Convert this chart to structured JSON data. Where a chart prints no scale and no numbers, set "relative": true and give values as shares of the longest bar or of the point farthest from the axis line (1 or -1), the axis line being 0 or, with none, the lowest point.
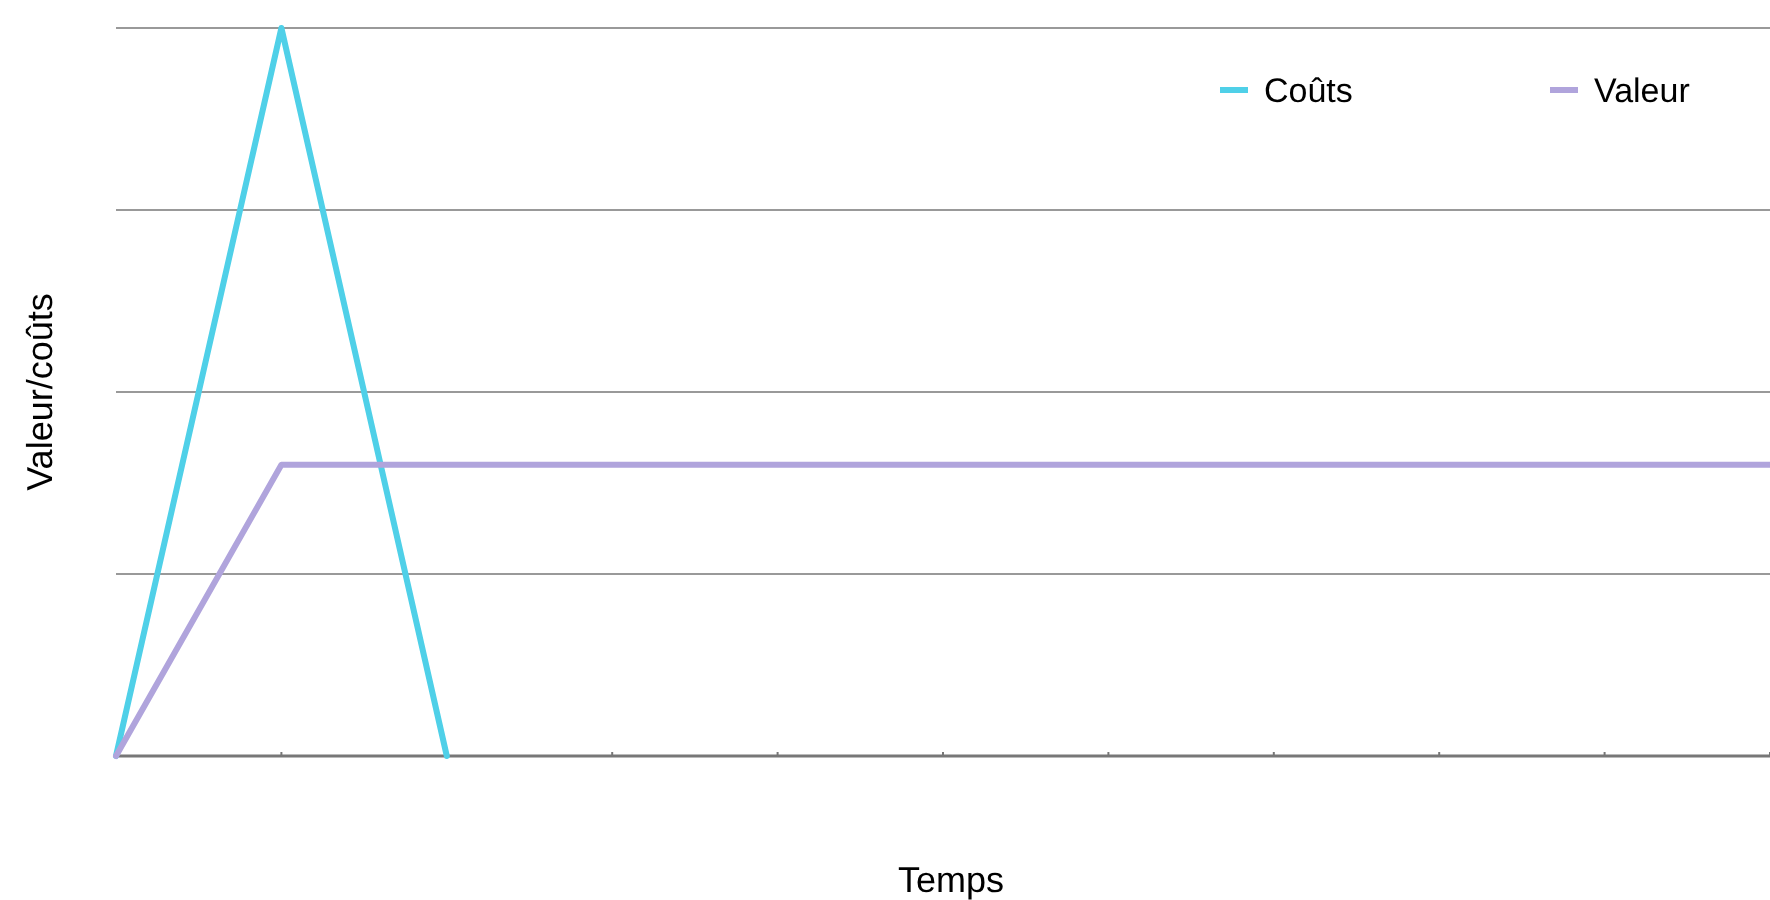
{
  "chart_data": {
    "type": "line",
    "xlabel": "Temps",
    "ylabel": "Valeur/coûts",
    "relative": true,
    "grid": "y",
    "legend": "top right",
    "categories": [
      null,
      null,
      null,
      null,
      null,
      null,
      null,
      null,
      null,
      null,
      null
    ],
    "series": [
      {
        "name": "Coûts",
        "color": "#4fd0e8",
        "values": [
          0,
          1,
          0,
          null,
          null,
          null,
          null,
          null,
          null,
          null,
          null
        ]
      },
      {
        "name": "Valeur",
        "color": "#b0a4dc",
        "values": [
          0,
          0.4,
          0.4,
          0.4,
          0.4,
          0.4,
          0.4,
          0.4,
          0.4,
          0.4,
          0.4
        ]
      }
    ]
  }
}
